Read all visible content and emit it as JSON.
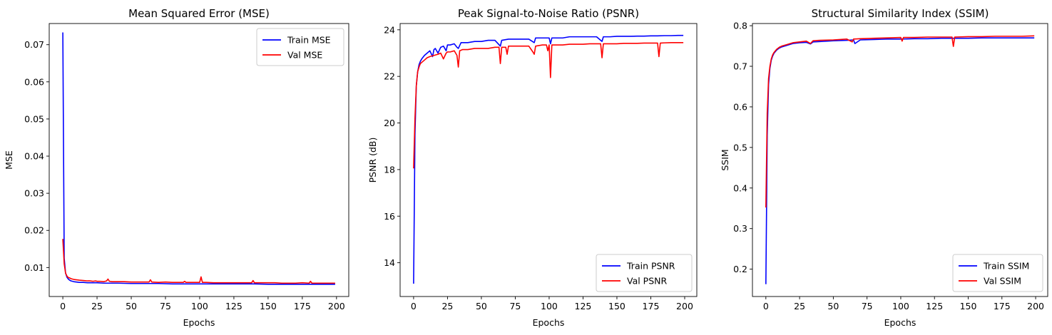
{
  "chart_data": [
    {
      "type": "line",
      "title": "Mean Squared Error (MSE)",
      "xlabel": "Epochs",
      "ylabel": "MSE",
      "xlim": [
        -9.95,
        208.95
      ],
      "ylim": [
        0.0022,
        0.0757
      ],
      "xticks": [
        0,
        25,
        50,
        75,
        100,
        125,
        150,
        175,
        200
      ],
      "yticks": [
        0.01,
        0.02,
        0.03,
        0.04,
        0.05,
        0.06,
        0.07
      ],
      "ytick_decimals": 2,
      "legend_position": "upper right",
      "series": [
        {
          "name": "Train MSE",
          "color": "#0000ff",
          "x": [
            0,
            1,
            2,
            3,
            4,
            5,
            6,
            8,
            10,
            12,
            15,
            18,
            20,
            25,
            30,
            35,
            40,
            50,
            60,
            70,
            80,
            90,
            100,
            110,
            120,
            130,
            140,
            150,
            160,
            170,
            180,
            190,
            199
          ],
          "y": [
            0.0733,
            0.0125,
            0.0085,
            0.0074,
            0.0069,
            0.0066,
            0.0064,
            0.0062,
            0.0061,
            0.006,
            0.006,
            0.0059,
            0.0059,
            0.0059,
            0.0058,
            0.0058,
            0.0058,
            0.0057,
            0.0057,
            0.0057,
            0.0056,
            0.0056,
            0.0056,
            0.0056,
            0.0056,
            0.0056,
            0.0056,
            0.0055,
            0.0055,
            0.0055,
            0.0055,
            0.0055,
            0.0055
          ]
        },
        {
          "name": "Val MSE",
          "color": "#ff0000",
          "x": [
            0,
            1,
            2,
            3,
            4,
            5,
            6,
            8,
            10,
            12,
            15,
            18,
            20,
            22,
            24,
            25,
            27,
            30,
            32,
            33,
            34,
            36,
            40,
            45,
            50,
            55,
            60,
            63,
            64,
            65,
            70,
            75,
            80,
            85,
            88,
            89,
            90,
            95,
            100,
            101,
            102,
            105,
            110,
            115,
            120,
            125,
            130,
            138,
            139,
            140,
            145,
            150,
            155,
            160,
            165,
            170,
            175,
            180,
            181,
            182,
            185,
            190,
            195,
            199
          ],
          "y": [
            0.0177,
            0.011,
            0.0085,
            0.0077,
            0.0073,
            0.0072,
            0.007,
            0.0068,
            0.0067,
            0.0066,
            0.0065,
            0.0064,
            0.0064,
            0.0063,
            0.0064,
            0.0063,
            0.0063,
            0.0062,
            0.0064,
            0.0069,
            0.0063,
            0.0062,
            0.0062,
            0.0062,
            0.0061,
            0.0061,
            0.0061,
            0.0061,
            0.0067,
            0.0061,
            0.006,
            0.0061,
            0.006,
            0.006,
            0.006,
            0.0063,
            0.006,
            0.006,
            0.006,
            0.0075,
            0.006,
            0.006,
            0.0059,
            0.0059,
            0.0059,
            0.0059,
            0.0059,
            0.0059,
            0.0065,
            0.0059,
            0.0059,
            0.0059,
            0.0059,
            0.0058,
            0.0058,
            0.0058,
            0.0059,
            0.0058,
            0.0063,
            0.0058,
            0.0058,
            0.0058,
            0.0058,
            0.0058
          ]
        }
      ]
    },
    {
      "type": "line",
      "title": "Peak Signal-to-Noise Ratio (PSNR)",
      "xlabel": "Epochs",
      "ylabel": "PSNR (dB)",
      "xlim": [
        -9.95,
        208.95
      ],
      "ylim": [
        12.55,
        24.27
      ],
      "xticks": [
        0,
        25,
        50,
        75,
        100,
        125,
        150,
        175,
        200
      ],
      "yticks": [
        14,
        16,
        18,
        20,
        22,
        24
      ],
      "ytick_decimals": 0,
      "legend_position": "lower right",
      "series": [
        {
          "name": "Train PSNR",
          "color": "#0000ff",
          "x": [
            0,
            1,
            2,
            3,
            4,
            5,
            6,
            8,
            10,
            12,
            14,
            15,
            16,
            18,
            20,
            22,
            24,
            25,
            27,
            30,
            32,
            33,
            35,
            40,
            45,
            50,
            55,
            60,
            64,
            65,
            70,
            75,
            80,
            85,
            89,
            90,
            95,
            100,
            101,
            102,
            105,
            110,
            115,
            120,
            125,
            130,
            135,
            139,
            140,
            145,
            150,
            155,
            160,
            165,
            170,
            175,
            180,
            185,
            190,
            195,
            199
          ],
          "y": [
            13.1,
            19.5,
            21.6,
            22.2,
            22.5,
            22.65,
            22.75,
            22.9,
            23.0,
            23.1,
            22.85,
            23.15,
            23.2,
            23.0,
            23.25,
            23.3,
            23.1,
            23.35,
            23.35,
            23.4,
            23.25,
            23.2,
            23.45,
            23.45,
            23.5,
            23.5,
            23.55,
            23.55,
            23.3,
            23.55,
            23.6,
            23.6,
            23.6,
            23.6,
            23.45,
            23.65,
            23.65,
            23.65,
            23.4,
            23.65,
            23.65,
            23.65,
            23.7,
            23.7,
            23.7,
            23.7,
            23.7,
            23.5,
            23.7,
            23.7,
            23.72,
            23.72,
            23.72,
            23.73,
            23.73,
            23.74,
            23.74,
            23.75,
            23.75,
            23.76,
            23.76
          ]
        },
        {
          "name": "Val PSNR",
          "color": "#ff0000",
          "x": [
            0,
            1,
            2,
            3,
            4,
            5,
            6,
            8,
            10,
            12,
            15,
            18,
            20,
            22,
            24,
            25,
            27,
            30,
            32,
            33,
            34,
            36,
            40,
            45,
            50,
            55,
            60,
            63,
            64,
            65,
            68,
            69,
            70,
            75,
            80,
            85,
            88,
            89,
            90,
            95,
            98,
            99,
            100,
            101,
            102,
            105,
            110,
            115,
            120,
            125,
            130,
            138,
            139,
            140,
            145,
            150,
            155,
            160,
            165,
            170,
            175,
            180,
            181,
            182,
            185,
            190,
            195,
            199
          ],
          "y": [
            18.05,
            20.2,
            21.6,
            22.2,
            22.4,
            22.55,
            22.6,
            22.7,
            22.8,
            22.85,
            22.9,
            22.95,
            23.0,
            22.75,
            23.0,
            23.05,
            23.05,
            23.1,
            22.9,
            22.4,
            23.1,
            23.15,
            23.15,
            23.2,
            23.2,
            23.2,
            23.25,
            23.25,
            22.55,
            23.25,
            23.25,
            22.95,
            23.3,
            23.3,
            23.3,
            23.3,
            23.05,
            22.95,
            23.3,
            23.35,
            23.35,
            23.1,
            23.35,
            21.95,
            23.35,
            23.35,
            23.35,
            23.38,
            23.38,
            23.38,
            23.4,
            23.4,
            22.8,
            23.4,
            23.4,
            23.4,
            23.42,
            23.42,
            23.42,
            23.43,
            23.43,
            23.43,
            22.85,
            23.43,
            23.44,
            23.45,
            23.45,
            23.45
          ]
        }
      ]
    },
    {
      "type": "line",
      "title": "Structural Similarity Index (SSIM)",
      "xlabel": "Epochs",
      "ylabel": "SSIM",
      "xlim": [
        -9.95,
        208.95
      ],
      "ylim": [
        0.1326,
        0.8054
      ],
      "xticks": [
        0,
        25,
        50,
        75,
        100,
        125,
        150,
        175,
        200
      ],
      "yticks": [
        0.2,
        0.3,
        0.4,
        0.5,
        0.6,
        0.7,
        0.8
      ],
      "ytick_decimals": 1,
      "legend_position": "lower right",
      "series": [
        {
          "name": "Train SSIM",
          "color": "#0000ff",
          "x": [
            0,
            1,
            2,
            3,
            4,
            5,
            6,
            8,
            10,
            12,
            15,
            18,
            20,
            25,
            30,
            33,
            35,
            40,
            50,
            60,
            65,
            66,
            70,
            80,
            90,
            100,
            110,
            120,
            130,
            140,
            150,
            160,
            170,
            180,
            190,
            199
          ],
          "y": [
            0.163,
            0.53,
            0.655,
            0.695,
            0.715,
            0.725,
            0.732,
            0.74,
            0.745,
            0.748,
            0.751,
            0.754,
            0.756,
            0.758,
            0.759,
            0.755,
            0.76,
            0.761,
            0.763,
            0.764,
            0.765,
            0.756,
            0.765,
            0.766,
            0.767,
            0.767,
            0.768,
            0.768,
            0.769,
            0.769,
            0.769,
            0.77,
            0.77,
            0.77,
            0.77,
            0.77
          ]
        },
        {
          "name": "Val SSIM",
          "color": "#ff0000",
          "x": [
            0,
            1,
            2,
            3,
            4,
            5,
            6,
            8,
            10,
            12,
            15,
            18,
            20,
            25,
            30,
            33,
            35,
            40,
            50,
            60,
            64,
            65,
            70,
            80,
            90,
            100,
            101,
            102,
            110,
            120,
            130,
            138,
            139,
            140,
            150,
            160,
            170,
            180,
            190,
            199
          ],
          "y": [
            0.352,
            0.585,
            0.67,
            0.7,
            0.718,
            0.728,
            0.734,
            0.742,
            0.747,
            0.75,
            0.753,
            0.756,
            0.758,
            0.76,
            0.762,
            0.756,
            0.763,
            0.764,
            0.765,
            0.767,
            0.76,
            0.767,
            0.768,
            0.769,
            0.77,
            0.771,
            0.762,
            0.771,
            0.771,
            0.772,
            0.772,
            0.772,
            0.749,
            0.772,
            0.773,
            0.773,
            0.774,
            0.774,
            0.774,
            0.775
          ]
        }
      ]
    }
  ]
}
